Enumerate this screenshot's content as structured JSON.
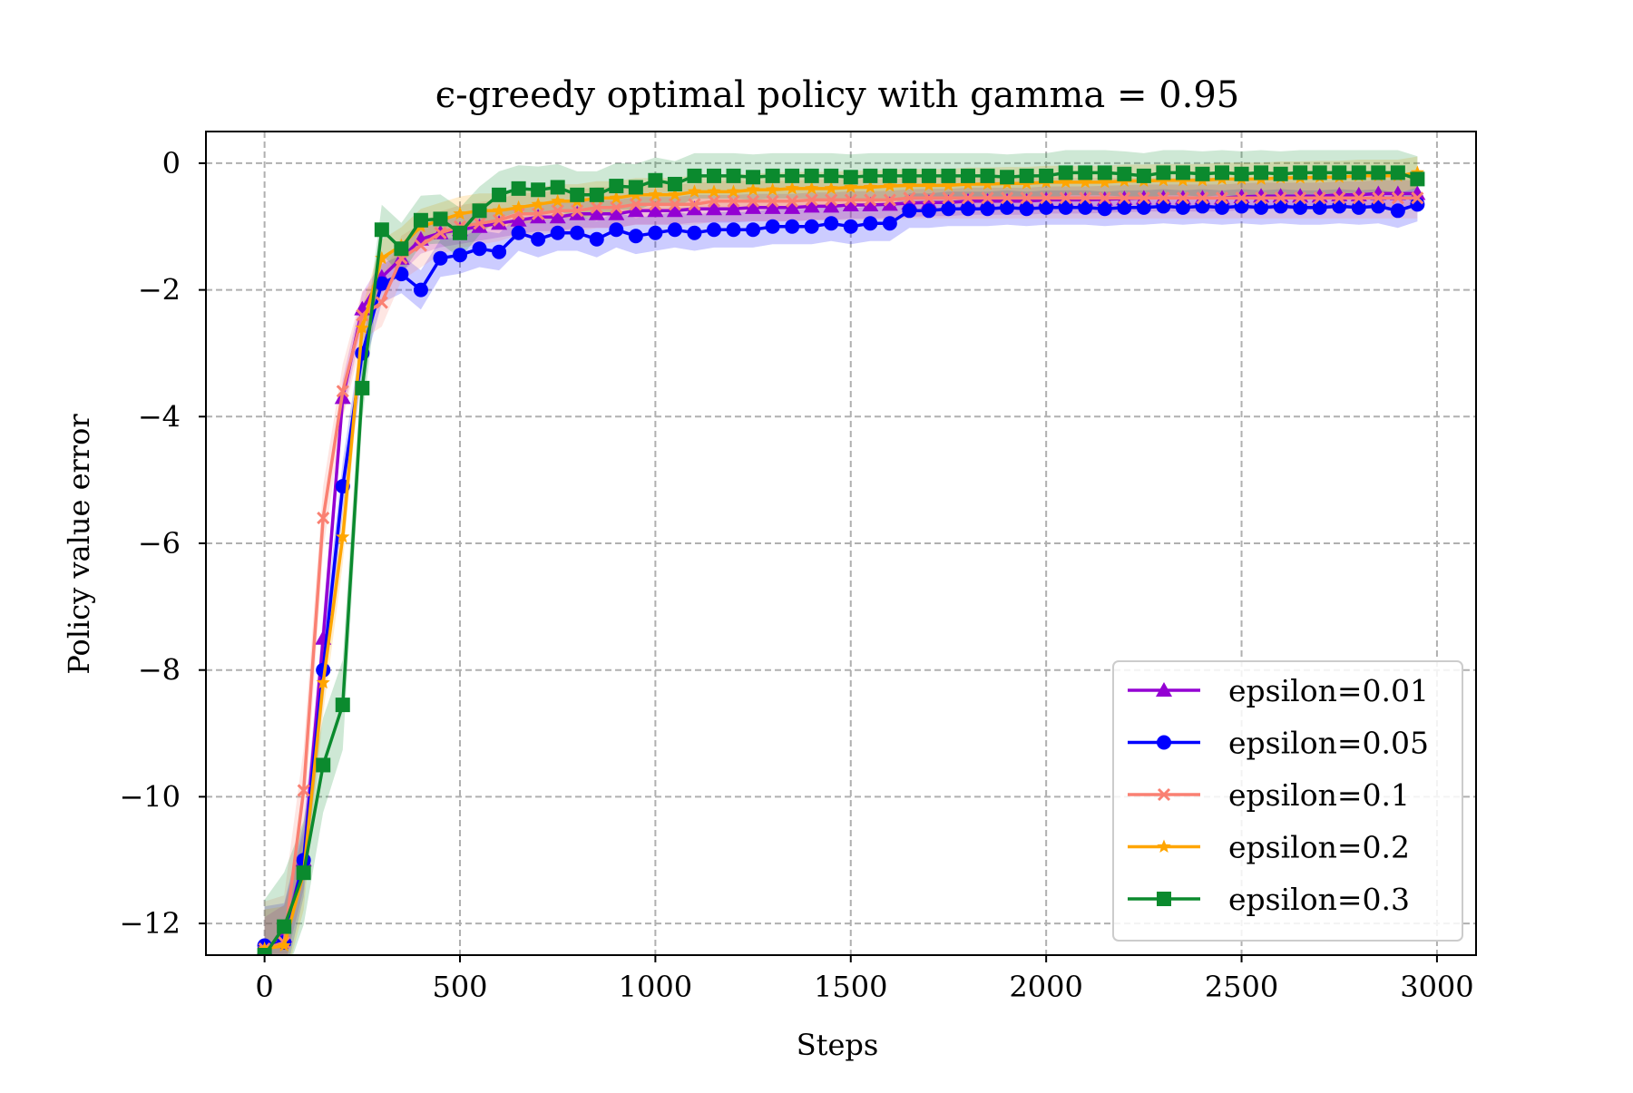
{
  "chart_data": {
    "type": "line",
    "title": "ϵ-greedy optimal policy with gamma = 0.95",
    "xlabel": "Steps",
    "ylabel": "Policy value error",
    "xlim": [
      -150,
      3100
    ],
    "ylim": [
      -12.5,
      0.5
    ],
    "xticks": [
      0,
      500,
      1000,
      1500,
      2000,
      2500,
      3000
    ],
    "xtick_labels": [
      "0",
      "500",
      "1000",
      "1500",
      "2000",
      "2500",
      "3000"
    ],
    "yticks": [
      0,
      -2,
      -4,
      -6,
      -8,
      -10,
      -12
    ],
    "ytick_labels": [
      "0",
      "−2",
      "−4",
      "−6",
      "−8",
      "−10",
      "−12"
    ],
    "grid": true,
    "legend_position": "lower-right",
    "x": [
      0,
      50,
      100,
      150,
      200,
      250,
      300,
      350,
      400,
      450,
      500,
      550,
      600,
      650,
      700,
      750,
      800,
      850,
      900,
      950,
      1000,
      1050,
      1100,
      1150,
      1200,
      1250,
      1300,
      1350,
      1400,
      1450,
      1500,
      1550,
      1600,
      1650,
      1700,
      1750,
      1800,
      1850,
      1900,
      1950,
      2000,
      2050,
      2100,
      2150,
      2200,
      2250,
      2300,
      2350,
      2400,
      2450,
      2500,
      2550,
      2600,
      2650,
      2700,
      2750,
      2800,
      2850,
      2900,
      2950
    ],
    "series": [
      {
        "name": "epsilon=0.01",
        "color": "#9400d3",
        "marker": "triangle",
        "band": 0.2,
        "values": [
          -12.4,
          -12.2,
          -11.0,
          -7.5,
          -3.7,
          -2.3,
          -1.8,
          -1.5,
          -1.2,
          -1.1,
          -1.05,
          -1.0,
          -0.95,
          -0.9,
          -0.85,
          -0.85,
          -0.8,
          -0.8,
          -0.8,
          -0.75,
          -0.75,
          -0.75,
          -0.72,
          -0.72,
          -0.72,
          -0.7,
          -0.7,
          -0.7,
          -0.68,
          -0.68,
          -0.66,
          -0.66,
          -0.65,
          -0.63,
          -0.62,
          -0.62,
          -0.6,
          -0.6,
          -0.6,
          -0.6,
          -0.58,
          -0.58,
          -0.58,
          -0.57,
          -0.56,
          -0.55,
          -0.55,
          -0.55,
          -0.55,
          -0.55,
          -0.53,
          -0.52,
          -0.52,
          -0.52,
          -0.52,
          -0.5,
          -0.5,
          -0.48,
          -0.48,
          -0.48
        ]
      },
      {
        "name": "epsilon=0.05",
        "color": "#0000ff",
        "marker": "circle",
        "band": 0.25,
        "values": [
          -12.35,
          -12.3,
          -11.0,
          -8.0,
          -5.1,
          -3.0,
          -1.9,
          -1.75,
          -2.0,
          -1.5,
          -1.45,
          -1.35,
          -1.4,
          -1.1,
          -1.2,
          -1.1,
          -1.1,
          -1.2,
          -1.05,
          -1.15,
          -1.1,
          -1.05,
          -1.1,
          -1.05,
          -1.05,
          -1.05,
          -1.0,
          -1.0,
          -1.0,
          -0.95,
          -1.0,
          -0.95,
          -0.95,
          -0.75,
          -0.75,
          -0.72,
          -0.72,
          -0.72,
          -0.7,
          -0.72,
          -0.7,
          -0.7,
          -0.7,
          -0.72,
          -0.7,
          -0.7,
          -0.68,
          -0.7,
          -0.68,
          -0.7,
          -0.68,
          -0.7,
          -0.68,
          -0.7,
          -0.7,
          -0.68,
          -0.7,
          -0.68,
          -0.75,
          -0.65
        ]
      },
      {
        "name": "epsilon=0.1",
        "color": "#fa8072",
        "marker": "x",
        "band": 0.3,
        "values": [
          -12.4,
          -12.3,
          -9.9,
          -5.6,
          -3.6,
          -2.4,
          -2.2,
          -1.5,
          -1.3,
          -1.1,
          -1.0,
          -0.95,
          -0.9,
          -0.8,
          -0.8,
          -0.75,
          -0.75,
          -0.7,
          -0.7,
          -0.65,
          -0.65,
          -0.65,
          -0.65,
          -0.6,
          -0.6,
          -0.6,
          -0.6,
          -0.6,
          -0.58,
          -0.58,
          -0.58,
          -0.58,
          -0.58,
          -0.55,
          -0.55,
          -0.55,
          -0.55,
          -0.55,
          -0.55,
          -0.55,
          -0.55,
          -0.55,
          -0.55,
          -0.55,
          -0.55,
          -0.55,
          -0.55,
          -0.55,
          -0.55,
          -0.55,
          -0.55,
          -0.55,
          -0.55,
          -0.55,
          -0.55,
          -0.55,
          -0.55,
          -0.55,
          -0.55,
          -0.55
        ]
      },
      {
        "name": "epsilon=0.2",
        "color": "#ffa500",
        "marker": "star",
        "band": 0.25,
        "values": [
          -12.4,
          -12.35,
          -11.2,
          -8.2,
          -5.9,
          -2.6,
          -1.5,
          -1.3,
          -1.0,
          -0.9,
          -0.8,
          -0.75,
          -0.75,
          -0.7,
          -0.65,
          -0.6,
          -0.6,
          -0.55,
          -0.55,
          -0.5,
          -0.5,
          -0.5,
          -0.45,
          -0.45,
          -0.45,
          -0.42,
          -0.42,
          -0.4,
          -0.4,
          -0.4,
          -0.38,
          -0.38,
          -0.36,
          -0.35,
          -0.35,
          -0.35,
          -0.33,
          -0.33,
          -0.32,
          -0.32,
          -0.3,
          -0.3,
          -0.3,
          -0.3,
          -0.28,
          -0.28,
          -0.27,
          -0.27,
          -0.27,
          -0.25,
          -0.25,
          -0.25,
          -0.23,
          -0.23,
          -0.22,
          -0.22,
          -0.2,
          -0.2,
          -0.2,
          -0.15
        ]
      },
      {
        "name": "epsilon=0.3",
        "color": "#0b8a2e",
        "marker": "square",
        "band": 0.35,
        "values": [
          -12.5,
          -12.05,
          -11.2,
          -9.5,
          -8.55,
          -3.55,
          -1.05,
          -1.35,
          -0.9,
          -0.88,
          -1.1,
          -0.75,
          -0.5,
          -0.4,
          -0.42,
          -0.38,
          -0.5,
          -0.5,
          -0.36,
          -0.38,
          -0.27,
          -0.33,
          -0.2,
          -0.2,
          -0.2,
          -0.22,
          -0.2,
          -0.2,
          -0.2,
          -0.2,
          -0.22,
          -0.2,
          -0.2,
          -0.2,
          -0.2,
          -0.2,
          -0.2,
          -0.2,
          -0.22,
          -0.2,
          -0.2,
          -0.15,
          -0.15,
          -0.15,
          -0.17,
          -0.2,
          -0.15,
          -0.15,
          -0.17,
          -0.15,
          -0.17,
          -0.15,
          -0.17,
          -0.15,
          -0.15,
          -0.15,
          -0.15,
          -0.15,
          -0.15,
          -0.25
        ]
      }
    ]
  }
}
